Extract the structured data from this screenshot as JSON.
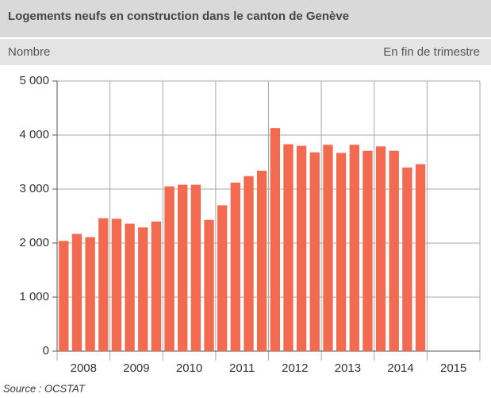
{
  "chart_data": {
    "type": "bar",
    "title": "Logements neufs en construction dans le canton de Genève",
    "y_label": "Nombre",
    "note": "En fin de trimestre",
    "source": "Source : OCSTAT",
    "color": "#f26a4f",
    "categories": [
      "2008",
      "2009",
      "2010",
      "2011",
      "2012",
      "2013",
      "2014",
      "2015"
    ],
    "values": [
      [
        2040,
        2170,
        2110,
        2460
      ],
      [
        2450,
        2360,
        2290,
        2400
      ],
      [
        3050,
        3080,
        3080,
        2430
      ],
      [
        2700,
        3120,
        3240,
        3340
      ],
      [
        4130,
        3830,
        3800,
        3680
      ],
      [
        3820,
        3670,
        3820,
        3710
      ],
      [
        3790,
        3710,
        3400,
        3460
      ],
      [
        null,
        null,
        null,
        null
      ]
    ],
    "ylim": [
      0,
      5000
    ],
    "yticks": [
      0,
      {
        "value": 1000,
        "label": "1 000"
      },
      {
        "value": 2000,
        "label": "2 000"
      },
      {
        "value": 3000,
        "label": "3 000"
      },
      {
        "value": 4000,
        "label": "4 000"
      },
      {
        "value": 5000,
        "label": "5 000"
      }
    ],
    "grid": true
  }
}
